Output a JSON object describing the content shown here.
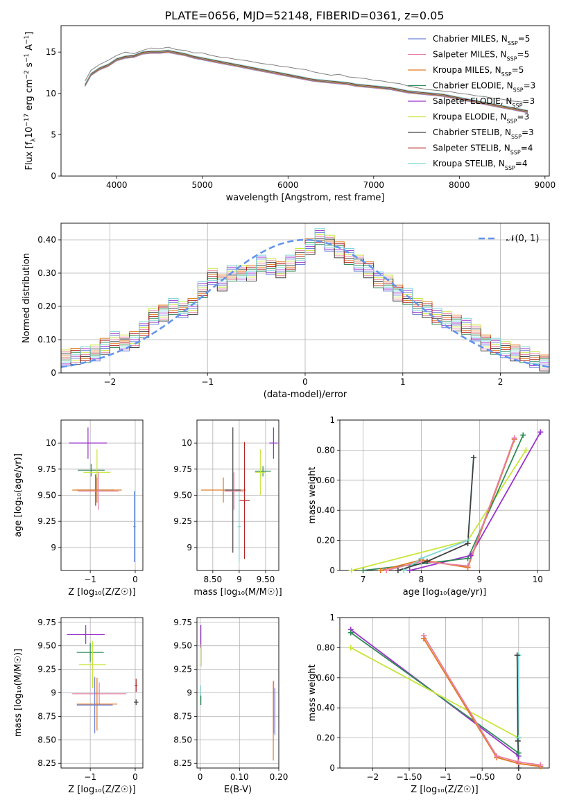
{
  "figure_title": "PLATE=0656, MJD=52148, FIBERID=0361, z=0.05",
  "colors": {
    "Chabrier MILES": "#6b7fd7",
    "Salpeter MILES": "#e87fa2",
    "Kroupa MILES": "#e07a20",
    "Chabrier ELODIE": "#2e8b57",
    "Salpeter ELODIE": "#9932cc",
    "Kroupa ELODIE": "#c8e63c",
    "Chabrier STELIB": "#404040",
    "Salpeter STELIB": "#b22222",
    "Kroupa STELIB": "#7ed6d6",
    "data": "#808080",
    "gaussian": "#6495ed"
  },
  "chart_data": [
    {
      "id": "spectrum",
      "type": "line",
      "title": "PLATE=0656, MJD=52148, FIBERID=0361, z=0.05",
      "xlabel": "wavelength [Angstrom, rest frame]",
      "ylabel_parts": [
        "Flux [f",
        "λ",
        "10",
        "−17",
        " erg cm",
        "−2",
        " s",
        "−1",
        " A",
        "−1",
        "]"
      ],
      "xlim": [
        3350,
        9050
      ],
      "ylim": [
        0,
        18.2
      ],
      "xticks": [
        4000,
        5000,
        6000,
        7000,
        8000,
        9000
      ],
      "yticks": [
        0,
        5,
        10,
        15
      ],
      "legend_position": "upper right",
      "legend": [
        {
          "name": "Chabrier MILES",
          "nssp": "5"
        },
        {
          "name": "Salpeter MILES",
          "nssp": "5"
        },
        {
          "name": "Kroupa MILES",
          "nssp": "5"
        },
        {
          "name": "Chabrier ELODIE",
          "nssp": "3"
        },
        {
          "name": "Salpeter ELODIE",
          "nssp": "3"
        },
        {
          "name": "Kroupa ELODIE",
          "nssp": "3"
        },
        {
          "name": "Chabrier STELIB",
          "nssp": "3"
        },
        {
          "name": "Salpeter STELIB",
          "nssp": "4"
        },
        {
          "name": "Kroupa STELIB",
          "nssp": "4"
        }
      ],
      "data_series": {
        "x": [
          3630,
          3700,
          3800,
          3900,
          4000,
          4100,
          4200,
          4300,
          4400,
          4500,
          4600,
          4700,
          4800,
          4900,
          5000,
          5100,
          5200,
          5300,
          5400,
          5500,
          5600,
          5700,
          5800,
          5900,
          6000,
          6100,
          6200,
          6300,
          6400,
          6500,
          6600,
          6700,
          6800,
          6900,
          7000,
          7100,
          7200,
          7300,
          7400,
          7500,
          7600,
          7700,
          7800,
          7900,
          8000,
          8100,
          8200,
          8300,
          8400,
          8500,
          8600,
          8700,
          8800
        ],
        "y": [
          11.5,
          12.8,
          13.5,
          14.0,
          14.6,
          15.0,
          14.8,
          15.2,
          15.5,
          15.4,
          15.6,
          15.3,
          15.2,
          14.9,
          14.9,
          14.6,
          14.4,
          14.3,
          14.1,
          14.0,
          13.8,
          13.6,
          13.5,
          13.3,
          13.2,
          13.0,
          12.9,
          12.6,
          12.4,
          12.2,
          12.3,
          12.0,
          11.9,
          11.8,
          11.6,
          11.5,
          11.3,
          11.2,
          10.9,
          10.7,
          10.5,
          10.4,
          10.3,
          10.2,
          10.0,
          9.9,
          9.7,
          9.6,
          9.4,
          9.3,
          9.1,
          9.0,
          8.9
        ]
      },
      "model_series_x": [
        3630,
        3700,
        3800,
        3900,
        4000,
        4100,
        4200,
        4300,
        4400,
        4500,
        4600,
        4700,
        4800,
        4900,
        5000,
        5100,
        5200,
        5300,
        5400,
        5500,
        5600,
        5700,
        5800,
        5900,
        6000,
        6100,
        6200,
        6300,
        6400,
        6500,
        6600,
        6700,
        6800,
        6900,
        7000,
        7100,
        7200,
        7300,
        7400,
        7500,
        7600,
        7700,
        7800,
        7900,
        8000,
        8100,
        8200,
        8300,
        8400,
        8500,
        8600,
        8700,
        8800
      ],
      "model_series_y": [
        11.0,
        12.3,
        13.0,
        13.4,
        14.1,
        14.4,
        14.5,
        14.9,
        15.0,
        15.0,
        15.1,
        14.9,
        14.7,
        14.4,
        14.2,
        14.0,
        13.8,
        13.6,
        13.4,
        13.2,
        13.0,
        12.8,
        12.6,
        12.4,
        12.2,
        12.0,
        11.8,
        11.6,
        11.5,
        11.4,
        11.3,
        11.2,
        11.0,
        10.9,
        10.8,
        10.7,
        10.6,
        10.4,
        10.2,
        10.1,
        10.0,
        9.9,
        9.8,
        9.6,
        9.4,
        9.2,
        9.0,
        8.8,
        8.6,
        8.4,
        8.2,
        8.0,
        7.8
      ]
    },
    {
      "id": "residuals",
      "type": "line",
      "xlabel": "(data-model)/error",
      "ylabel": "Normed distribution",
      "xlim": [
        -2.5,
        2.5
      ],
      "ylim": [
        0,
        0.45
      ],
      "xticks": [
        -2,
        -1,
        0,
        1,
        2
      ],
      "yticks": [
        0.0,
        0.1,
        0.2,
        0.3,
        0.4
      ],
      "legend_position": "upper right",
      "legend_label": "𝒩(0, 1)",
      "gaussian": {
        "mu": 0,
        "sigma": 1,
        "peak": 0.4
      },
      "hist_bin_edges": [
        -2.5,
        -2.4,
        -2.3,
        -2.2,
        -2.1,
        -2.0,
        -1.9,
        -1.8,
        -1.7,
        -1.6,
        -1.5,
        -1.4,
        -1.3,
        -1.2,
        -1.1,
        -1.0,
        -0.9,
        -0.8,
        -0.7,
        -0.6,
        -0.5,
        -0.4,
        -0.3,
        -0.2,
        -0.1,
        0.0,
        0.1,
        0.2,
        0.3,
        0.4,
        0.5,
        0.6,
        0.7,
        0.8,
        0.9,
        1.0,
        1.1,
        1.2,
        1.3,
        1.4,
        1.5,
        1.6,
        1.7,
        1.8,
        1.9,
        2.0,
        2.1,
        2.2,
        2.3,
        2.4,
        2.5
      ],
      "hist_mean": [
        0.045,
        0.05,
        0.055,
        0.06,
        0.08,
        0.1,
        0.09,
        0.1,
        0.13,
        0.17,
        0.18,
        0.2,
        0.19,
        0.2,
        0.25,
        0.29,
        0.27,
        0.3,
        0.3,
        0.3,
        0.33,
        0.32,
        0.31,
        0.33,
        0.35,
        0.38,
        0.41,
        0.39,
        0.37,
        0.35,
        0.33,
        0.31,
        0.28,
        0.27,
        0.24,
        0.23,
        0.2,
        0.19,
        0.17,
        0.16,
        0.15,
        0.14,
        0.12,
        0.09,
        0.08,
        0.07,
        0.06,
        0.055,
        0.04,
        0.03
      ]
    },
    {
      "id": "age-vs-Z",
      "type": "scatter",
      "xlabel": "Z [log₁₀(Z/Z☉)]",
      "ylabel": "age  [log₁₀(age/yr)]",
      "xlim": [
        -1.65,
        0.17
      ],
      "ylim": [
        8.78,
        10.22
      ],
      "xticks": [
        -1,
        0
      ],
      "yticks": [
        9.0,
        9.25,
        9.5,
        9.75,
        10.0
      ],
      "points": [
        {
          "model": "Salpeter ELODIE",
          "x": -1.05,
          "y": 10.0,
          "xerr": 0.42,
          "yerr": 0.15
        },
        {
          "model": "Chabrier ELODIE",
          "x": -0.98,
          "y": 9.74,
          "xerr": 0.3,
          "yerr": 0.06
        },
        {
          "model": "Kroupa ELODIE",
          "x": -0.85,
          "y": 9.72,
          "xerr": 0.3,
          "yerr": 0.22
        },
        {
          "model": "Chabrier STELIB",
          "x": -0.88,
          "y": 9.55,
          "xerr": 0.42,
          "yerr": 0.15
        },
        {
          "model": "Kroupa MILES",
          "x": -0.85,
          "y": 9.55,
          "xerr": 0.55,
          "yerr": 0.12
        },
        {
          "model": "Salpeter MILES",
          "x": -0.82,
          "y": 9.54,
          "xerr": 0.45,
          "yerr": 0.18
        },
        {
          "model": "Kroupa STELIB",
          "x": -0.01,
          "y": 9.2,
          "xerr": 0.03,
          "yerr": 0.34
        },
        {
          "model": "Chabrier MILES",
          "x": -0.02,
          "y": 9.2,
          "xerr": 0.02,
          "yerr": 0.34
        }
      ]
    },
    {
      "id": "age-vs-mass",
      "type": "scatter",
      "xlabel": "mass [log₁₀(M/M☉)]",
      "ylabel": "",
      "xlim": [
        8.2,
        9.75
      ],
      "ylim": [
        8.78,
        10.22
      ],
      "xticks": [
        8.5,
        9.0,
        9.5
      ],
      "yticks": [
        9.0,
        9.25,
        9.5,
        9.75,
        10.0
      ],
      "points": [
        {
          "model": "Salpeter ELODIE",
          "x": 9.65,
          "y": 10.0,
          "xerr": 0.08,
          "yerr": 0.15
        },
        {
          "model": "Chabrier ELODIE",
          "x": 9.45,
          "y": 9.73,
          "xerr": 0.15,
          "yerr": 0.05
        },
        {
          "model": "Kroupa ELODIE",
          "x": 9.4,
          "y": 9.72,
          "xerr": 0.1,
          "yerr": 0.22
        },
        {
          "model": "Kroupa MILES",
          "x": 8.7,
          "y": 9.55,
          "xerr": 0.42,
          "yerr": 0.12
        },
        {
          "model": "Chabrier STELIB",
          "x": 8.88,
          "y": 9.55,
          "xerr": 0.15,
          "yerr": 0.6
        },
        {
          "model": "Salpeter MILES",
          "x": 8.9,
          "y": 9.54,
          "xerr": 0.18,
          "yerr": 0.18
        },
        {
          "model": "Salpeter STELIB",
          "x": 9.1,
          "y": 9.45,
          "xerr": 0.1,
          "yerr": 0.56
        },
        {
          "model": "Kroupa STELIB",
          "x": 9.0,
          "y": 9.2,
          "xerr": 0.03,
          "yerr": 0.34
        }
      ]
    },
    {
      "id": "massweight-vs-age",
      "type": "line",
      "xlabel": "age  [log₁₀(age/yr)]",
      "ylabel": "mass weight",
      "xlim": [
        6.6,
        10.2
      ],
      "ylim": [
        0,
        1.0
      ],
      "xticks": [
        7,
        8,
        9,
        10
      ],
      "yticks": [
        0.0,
        0.2,
        0.4,
        0.6,
        0.8,
        1.0
      ],
      "series": [
        {
          "name": "Kroupa ELODIE",
          "x": [
            6.8,
            8.8,
            9.8
          ],
          "y": [
            0.0,
            0.2,
            0.8
          ]
        },
        {
          "name": "Salpeter ELODIE",
          "x": [
            7.8,
            8.85,
            10.05
          ],
          "y": [
            0.0,
            0.1,
            0.92
          ]
        },
        {
          "name": "Chabrier ELODIE",
          "x": [
            7.0,
            8.8,
            9.75
          ],
          "y": [
            0.0,
            0.08,
            0.9
          ]
        },
        {
          "name": "Kroupa MILES",
          "x": [
            7.3,
            8.0,
            8.8,
            9.6
          ],
          "y": [
            0.0,
            0.07,
            0.02,
            0.87
          ]
        },
        {
          "name": "Salpeter MILES",
          "x": [
            7.4,
            8.0,
            8.8,
            9.6
          ],
          "y": [
            0.0,
            0.06,
            0.03,
            0.88
          ]
        },
        {
          "name": "Kroupa STELIB",
          "x": [
            7.7,
            8.0,
            8.8,
            8.9
          ],
          "y": [
            0.0,
            0.08,
            0.2,
            0.75
          ]
        },
        {
          "name": "Chabrier STELIB",
          "x": [
            7.6,
            8.1,
            8.8,
            8.9
          ],
          "y": [
            0.0,
            0.06,
            0.18,
            0.75
          ]
        }
      ]
    },
    {
      "id": "mass-vs-Z",
      "type": "scatter",
      "xlabel": "Z [log₁₀(Z/Z☉)]",
      "ylabel": "mass [log₁₀(M/M☉)]",
      "xlim": [
        -1.65,
        0.17
      ],
      "ylim": [
        8.2,
        9.8
      ],
      "xticks": [
        -1,
        0
      ],
      "yticks": [
        8.25,
        8.5,
        8.75,
        9.0,
        9.25,
        9.5,
        9.75
      ],
      "points": [
        {
          "model": "Salpeter ELODIE",
          "x": -1.1,
          "y": 9.62,
          "xerr": 0.42,
          "yerr": 0.1
        },
        {
          "model": "Chabrier ELODIE",
          "x": -1.0,
          "y": 9.43,
          "xerr": 0.3,
          "yerr": 0.1
        },
        {
          "model": "Kroupa ELODIE",
          "x": -0.95,
          "y": 9.3,
          "xerr": 0.3,
          "yerr": 0.25
        },
        {
          "model": "Salpeter MILES",
          "x": -0.8,
          "y": 8.99,
          "xerr": 0.6,
          "yerr": 0.12
        },
        {
          "model": "Kroupa MILES",
          "x": -0.85,
          "y": 8.88,
          "xerr": 0.45,
          "yerr": 0.28
        },
        {
          "model": "Chabrier MILES",
          "x": -0.9,
          "y": 8.87,
          "xerr": 0.4,
          "yerr": 0.3
        },
        {
          "model": "Salpeter STELIB",
          "x": 0.02,
          "y": 9.08,
          "xerr": 0.03,
          "yerr": 0.07
        },
        {
          "model": "Chabrier STELIB",
          "x": 0.02,
          "y": 8.9,
          "xerr": 0.05,
          "yerr": 0.03
        }
      ]
    },
    {
      "id": "mass-vs-EBV",
      "type": "scatter",
      "xlabel": "E(B-V)",
      "ylabel": "",
      "xlim": [
        -0.008,
        0.2
      ],
      "ylim": [
        8.2,
        9.8
      ],
      "xticks": [
        0.0,
        0.1,
        0.2
      ],
      "yticks": [
        8.25,
        8.5,
        8.75,
        9.0,
        9.25,
        9.5,
        9.75
      ],
      "points": [
        {
          "model": "Salpeter ELODIE",
          "x": 0.002,
          "y": 9.6,
          "xerr": 0.0,
          "yerr": 0.12
        },
        {
          "model": "Kroupa ELODIE",
          "x": 0.003,
          "y": 9.4,
          "xerr": 0.0,
          "yerr": 0.12
        },
        {
          "model": "Kroupa STELIB",
          "x": 0.001,
          "y": 9.0,
          "xerr": 0.0,
          "yerr": 0.08
        },
        {
          "model": "Chabrier ELODIE",
          "x": 0.002,
          "y": 8.92,
          "xerr": 0.0,
          "yerr": 0.05
        },
        {
          "model": "Salpeter MILES",
          "x": 0.187,
          "y": 8.85,
          "xerr": 0.0,
          "yerr": 0.28
        },
        {
          "model": "Kroupa MILES",
          "x": 0.186,
          "y": 8.7,
          "xerr": 0.0,
          "yerr": 0.42
        },
        {
          "model": "Chabrier MILES",
          "x": 0.19,
          "y": 8.8,
          "xerr": 0.0,
          "yerr": 0.25
        }
      ]
    },
    {
      "id": "massweight-vs-Z",
      "type": "line",
      "xlabel": "Z [log₁₀(Z/Z☉)]",
      "ylabel": "mass weight",
      "xlim": [
        -2.45,
        0.42
      ],
      "ylim": [
        0,
        1.0
      ],
      "xticks": [
        -2.0,
        -1.5,
        -1.0,
        -0.5,
        0.0
      ],
      "yticks": [
        0.0,
        0.2,
        0.4,
        0.6,
        0.8,
        1.0
      ],
      "series": [
        {
          "name": "Salpeter ELODIE",
          "x": [
            -2.3,
            0.0
          ],
          "y": [
            0.92,
            0.08
          ]
        },
        {
          "name": "Chabrier ELODIE",
          "x": [
            -2.3,
            0.0
          ],
          "y": [
            0.9,
            0.1
          ]
        },
        {
          "name": "Kroupa ELODIE",
          "x": [
            -2.3,
            0.0
          ],
          "y": [
            0.8,
            0.2
          ]
        },
        {
          "name": "Kroupa MILES",
          "x": [
            -1.3,
            -0.3,
            0.0,
            0.3
          ],
          "y": [
            0.86,
            0.07,
            0.03,
            0.01
          ]
        },
        {
          "name": "Salpeter MILES",
          "x": [
            -1.3,
            -0.3,
            0.0,
            0.3
          ],
          "y": [
            0.88,
            0.08,
            0.04,
            0.02
          ]
        },
        {
          "name": "Kroupa STELIB",
          "x": [
            0.0,
            0.0,
            0.0
          ],
          "y": [
            0.75,
            0.2,
            0.0
          ]
        },
        {
          "name": "Chabrier STELIB",
          "x": [
            -0.02,
            -0.01,
            0.0
          ],
          "y": [
            0.75,
            0.18,
            0.0
          ]
        }
      ]
    }
  ]
}
